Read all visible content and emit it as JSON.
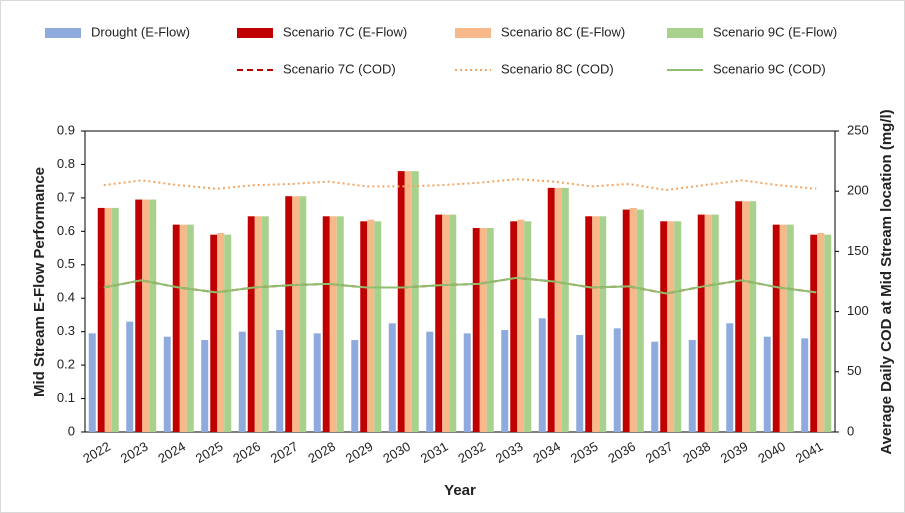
{
  "chart_data": {
    "type": "bar",
    "x_label": "Year",
    "y_label": "Mid Stream E-Flow Performance",
    "y2_label": "Average Daily COD at Mid Stream location (mg/l)",
    "categories": [
      "2022",
      "2023",
      "2024",
      "2025",
      "2026",
      "2027",
      "2028",
      "2029",
      "2030",
      "2031",
      "2032",
      "2033",
      "2034",
      "2035",
      "2036",
      "2037",
      "2038",
      "2039",
      "2040",
      "2041"
    ],
    "ylim": [
      0,
      0.9
    ],
    "yticks": [
      0,
      0.1,
      0.2,
      0.3,
      0.4,
      0.5,
      0.6,
      0.7,
      0.8,
      0.9
    ],
    "y2lim": [
      0,
      250
    ],
    "y2ticks": [
      0,
      50,
      100,
      150,
      200,
      250
    ],
    "grid": false,
    "series": [
      {
        "name": "Drought (E-Flow)",
        "type": "bar",
        "color": "#8faadc",
        "values": [
          0.295,
          0.33,
          0.285,
          0.275,
          0.3,
          0.305,
          0.295,
          0.275,
          0.325,
          0.3,
          0.295,
          0.305,
          0.34,
          0.29,
          0.31,
          0.27,
          0.275,
          0.325,
          0.285,
          0.28
        ]
      },
      {
        "name": "Scenario 7C (E-Flow)",
        "type": "bar",
        "color": "#c00000",
        "values": [
          0.67,
          0.695,
          0.62,
          0.59,
          0.645,
          0.705,
          0.645,
          0.63,
          0.78,
          0.65,
          0.61,
          0.63,
          0.73,
          0.645,
          0.665,
          0.63,
          0.65,
          0.69,
          0.62,
          0.59
        ]
      },
      {
        "name": "Scenario 8C (E-Flow)",
        "type": "bar",
        "color": "#f8b98a",
        "values": [
          0.67,
          0.695,
          0.62,
          0.595,
          0.645,
          0.705,
          0.645,
          0.635,
          0.78,
          0.65,
          0.61,
          0.635,
          0.73,
          0.645,
          0.67,
          0.63,
          0.65,
          0.69,
          0.62,
          0.595
        ]
      },
      {
        "name": "Scenario 9C (E-Flow)",
        "type": "bar",
        "color": "#a9d18e",
        "values": [
          0.67,
          0.695,
          0.62,
          0.59,
          0.645,
          0.705,
          0.645,
          0.63,
          0.78,
          0.65,
          0.61,
          0.63,
          0.73,
          0.645,
          0.665,
          0.63,
          0.65,
          0.69,
          0.62,
          0.59
        ]
      },
      {
        "name": "Scenario 7C (COD)",
        "type": "line",
        "axis": "y2",
        "dash": "dashed",
        "color": "#c00000",
        "values": [
          120,
          126,
          120,
          116,
          120,
          122,
          123,
          120,
          120,
          122,
          123,
          128,
          125,
          120,
          121,
          115,
          121,
          126,
          120,
          116
        ]
      },
      {
        "name": "Scenario 8C (COD)",
        "type": "line",
        "axis": "y2",
        "dash": "dotted",
        "color": "#f4a460",
        "values": [
          205,
          209,
          205,
          202,
          205,
          206,
          208,
          204,
          204,
          205,
          207,
          210,
          208,
          204,
          206,
          201,
          205,
          209,
          205,
          202
        ]
      },
      {
        "name": "Scenario 9C (COD)",
        "type": "line",
        "axis": "y2",
        "dash": "solid",
        "color": "#8fbf6e",
        "values": [
          120,
          126,
          120,
          116,
          120,
          122,
          123,
          120,
          120,
          122,
          123,
          128,
          125,
          120,
          121,
          115,
          121,
          126,
          120,
          116
        ]
      }
    ]
  }
}
